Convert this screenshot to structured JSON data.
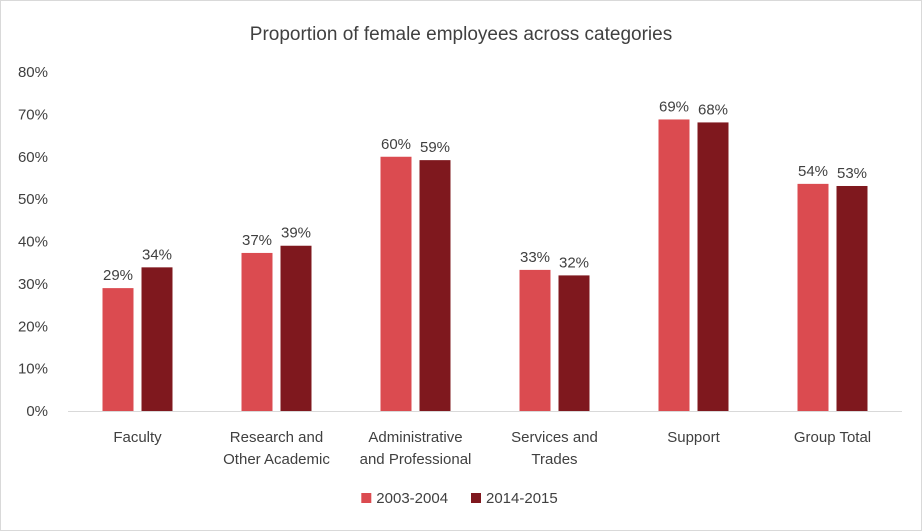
{
  "chart_data": {
    "type": "bar",
    "title": "Proportion of female employees across categories",
    "xlabel": "",
    "ylabel": "",
    "ylim": [
      0,
      80
    ],
    "yticks": [
      "0%",
      "10%",
      "20%",
      "30%",
      "40%",
      "50%",
      "60%",
      "70%",
      "80%"
    ],
    "grid": false,
    "legend_position": "bottom",
    "categories": [
      [
        "Faculty"
      ],
      [
        "Research and",
        "Other Academic"
      ],
      [
        "Administrative",
        "and Professional"
      ],
      [
        "Services and",
        "Trades"
      ],
      [
        "Support"
      ],
      [
        "Group Total"
      ]
    ],
    "series": [
      {
        "name": "2003-2004",
        "color": "#db4b50",
        "values": [
          29,
          37.3,
          60,
          33.3,
          68.8,
          53.6
        ],
        "labels": [
          "29%",
          "37%",
          "60%",
          "33%",
          "69%",
          "54%"
        ]
      },
      {
        "name": "2014-2015",
        "color": "#7f181e",
        "values": [
          33.9,
          39,
          59.2,
          32,
          68.1,
          53.1
        ],
        "labels": [
          "34%",
          "39%",
          "59%",
          "32%",
          "68%",
          "53%"
        ]
      }
    ]
  }
}
